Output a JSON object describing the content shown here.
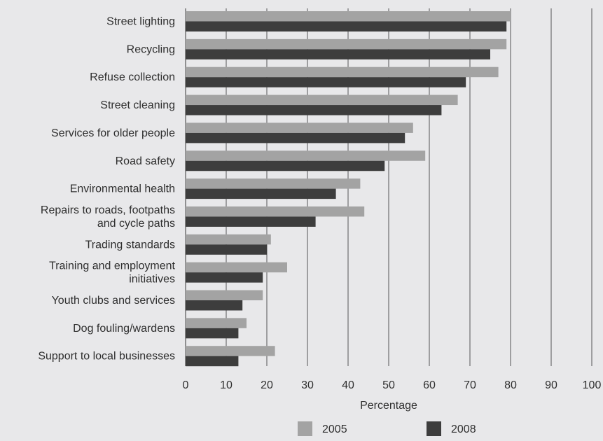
{
  "chart_data": {
    "type": "bar",
    "orientation": "horizontal",
    "categories": [
      "Street lighting",
      "Recycling",
      "Refuse collection",
      "Street cleaning",
      "Services for older people",
      "Road safety",
      "Environmental health",
      "Repairs to roads, footpaths and cycle paths",
      "Trading standards",
      "Training and employment initiatives",
      "Youth clubs and services",
      "Dog fouling/wardens",
      "Support to local businesses"
    ],
    "category_lines": [
      [
        "Street lighting"
      ],
      [
        "Recycling"
      ],
      [
        "Refuse collection"
      ],
      [
        "Street cleaning"
      ],
      [
        "Services for older people"
      ],
      [
        "Road safety"
      ],
      [
        "Environmental health"
      ],
      [
        "Repairs to roads, footpaths",
        "and cycle paths"
      ],
      [
        "Trading standards"
      ],
      [
        "Training and employment",
        "initiatives"
      ],
      [
        "Youth clubs and services"
      ],
      [
        "Dog fouling/wardens"
      ],
      [
        "Support to local businesses"
      ]
    ],
    "series": [
      {
        "name": "2005",
        "color": "#a3a3a3",
        "values": [
          80,
          79,
          77,
          67,
          56,
          59,
          43,
          44,
          21,
          25,
          19,
          15,
          22
        ]
      },
      {
        "name": "2008",
        "color": "#3d3d3d",
        "values": [
          79,
          75,
          69,
          63,
          54,
          49,
          37,
          32,
          20,
          19,
          14,
          13,
          13
        ]
      }
    ],
    "xlabel": "Percentage",
    "xlim": [
      0,
      100
    ],
    "xticks": [
      0,
      10,
      20,
      30,
      40,
      50,
      60,
      70,
      80,
      90,
      100
    ],
    "grid": "vertical",
    "legend_position": "bottom",
    "colors": {
      "background": "#e8e8ea",
      "gridline": "#555555"
    }
  }
}
